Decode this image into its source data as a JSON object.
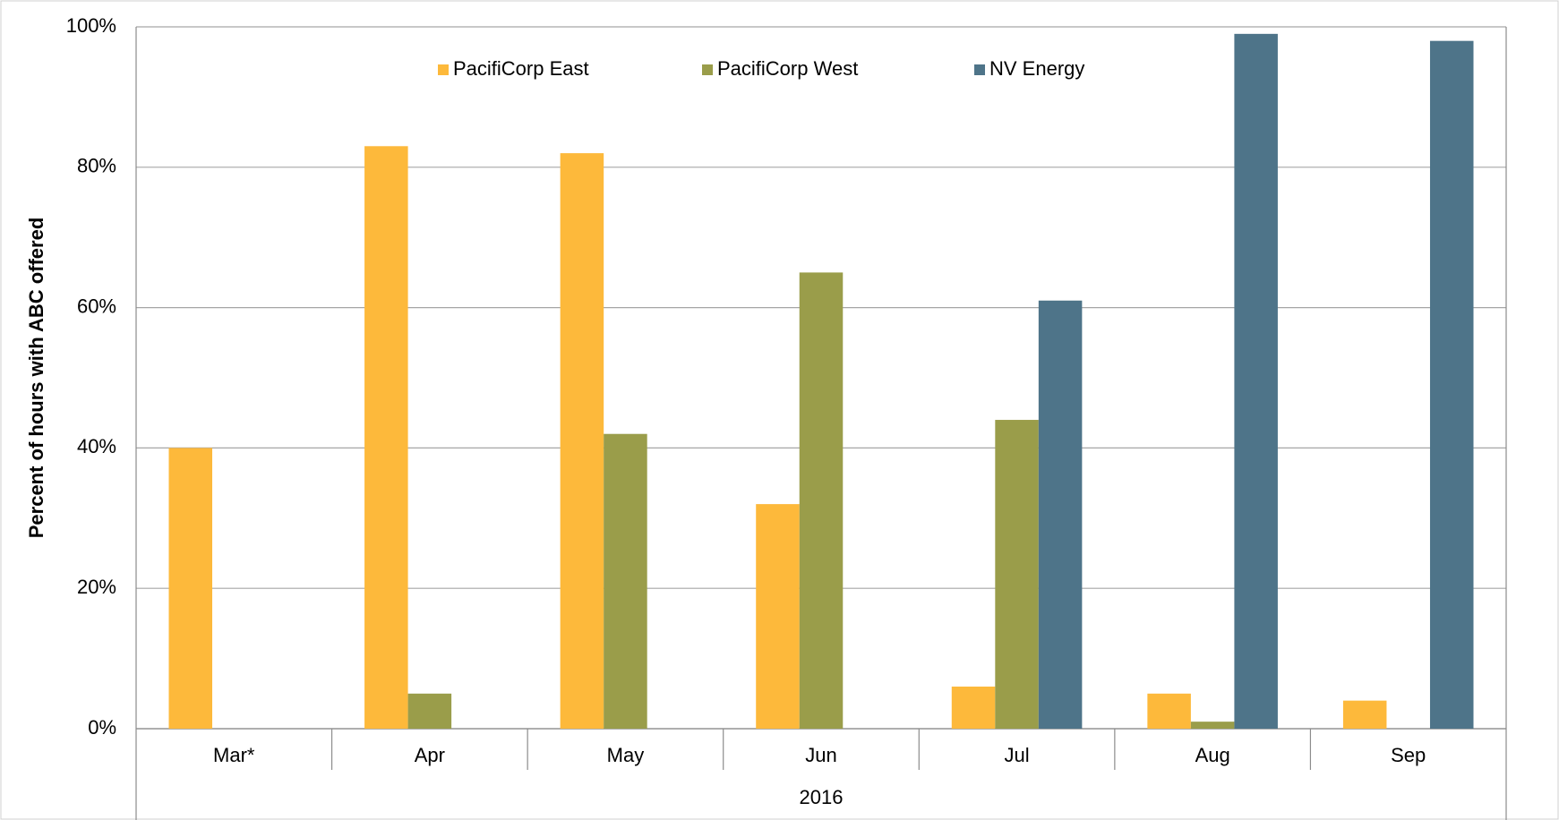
{
  "chart_data": {
    "type": "bar",
    "y_label": "Percent of hours with ABC offered",
    "group_label": "2016",
    "categories": [
      "Mar*",
      "Apr",
      "May",
      "Jun",
      "Jul",
      "Aug",
      "Sep"
    ],
    "series": [
      {
        "name": "PacifiCorp East",
        "color": "#fdb93b",
        "values": [
          40,
          83,
          82,
          32,
          6,
          5,
          4
        ]
      },
      {
        "name": "PacifiCorp West",
        "color": "#9a9d4a",
        "values": [
          null,
          5,
          42,
          65,
          44,
          1,
          null
        ]
      },
      {
        "name": "NV Energy",
        "color": "#4e7489",
        "values": [
          null,
          null,
          null,
          null,
          61,
          99,
          98
        ]
      }
    ],
    "ylim": [
      0,
      100
    ],
    "yticks": [
      {
        "value": 0,
        "label": "0%"
      },
      {
        "value": 20,
        "label": "20%"
      },
      {
        "value": 40,
        "label": "40%"
      },
      {
        "value": 60,
        "label": "60%"
      },
      {
        "value": 80,
        "label": "80%"
      },
      {
        "value": 100,
        "label": "100%"
      }
    ],
    "grid": true,
    "legend": "top"
  }
}
